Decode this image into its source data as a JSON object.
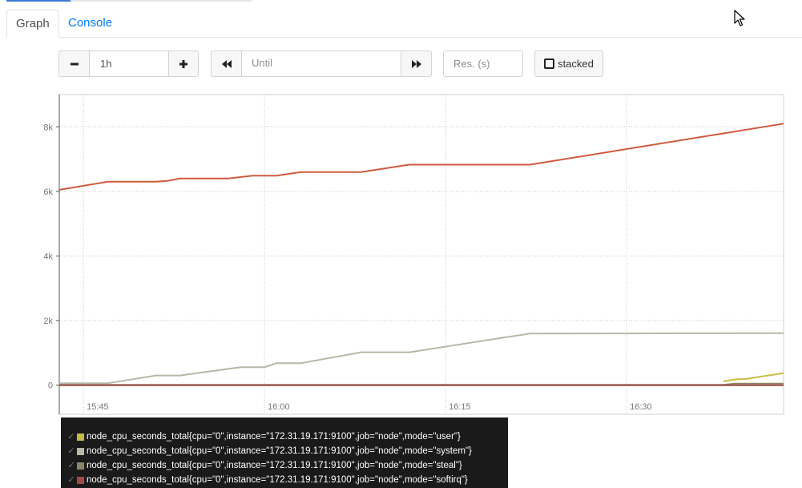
{
  "tabs": [
    {
      "label": "Graph",
      "active": true
    },
    {
      "label": "Console",
      "active": false
    }
  ],
  "controls": {
    "range_value": "1h",
    "until_placeholder": "Until",
    "res_placeholder": "Res. (s)",
    "stacked_label": "stacked"
  },
  "icons": {
    "minus": "minus-icon",
    "plus": "plus-icon",
    "back": "double-left-icon",
    "forward": "double-right-icon",
    "checkbox": "checkbox-icon",
    "cursor": "mouse-pointer-icon"
  },
  "chart_data": {
    "type": "line",
    "x_ticks": [
      "15:45",
      "16:00",
      "16:15",
      "16:30"
    ],
    "y_ticks": [
      "0",
      "2k",
      "4k",
      "6k",
      "8k"
    ],
    "xlim": [
      "15:43",
      "16:43"
    ],
    "ylim": [
      -900,
      9000
    ],
    "grid": true,
    "legend_placement": "bottom-left",
    "series": [
      {
        "name": "node_cpu_seconds_total{cpu=\"0\",instance=\"172.31.19.171:9100\",job=\"node\",mode=\"user\"}",
        "color": "#c8bc44",
        "points": [
          [
            "16:38",
            120
          ],
          [
            "16:39",
            180
          ],
          [
            "16:40",
            200
          ],
          [
            "16:41",
            260
          ],
          [
            "16:43",
            370
          ]
        ]
      },
      {
        "name": "node_cpu_seconds_total{cpu=\"0\",instance=\"172.31.19.171:9100\",job=\"node\",mode=\"system\"}",
        "color": "#b9b8a6",
        "points": [
          [
            "15:43",
            60
          ],
          [
            "15:47",
            60
          ],
          [
            "15:51",
            300
          ],
          [
            "15:53",
            300
          ],
          [
            "15:58",
            560
          ],
          [
            "16:00",
            560
          ],
          [
            "16:01",
            680
          ],
          [
            "16:03",
            680
          ],
          [
            "16:08",
            1020
          ],
          [
            "16:12",
            1020
          ],
          [
            "16:22",
            1600
          ],
          [
            "16:43",
            1610
          ]
        ]
      },
      {
        "name": "node_cpu_seconds_total{cpu=\"0\",instance=\"172.31.19.171:9100\",job=\"node\",mode=\"steal\"}",
        "color": "#8c8468",
        "points": [
          [
            "15:43",
            10
          ],
          [
            "16:38",
            10
          ],
          [
            "16:39",
            50
          ],
          [
            "16:43",
            50
          ]
        ]
      },
      {
        "name": "node_cpu_seconds_total{cpu=\"0\",instance=\"172.31.19.171:9100\",job=\"node\",mode=\"softirq\"}",
        "color": "#9e4b48",
        "points": [
          [
            "15:43",
            0
          ],
          [
            "16:43",
            0
          ]
        ]
      },
      {
        "name": "",
        "color": "#d05a3e",
        "points": [
          [
            "15:43",
            6050
          ],
          [
            "15:47",
            6300
          ],
          [
            "15:51",
            6300
          ],
          [
            "15:52",
            6330
          ],
          [
            "15:53",
            6400
          ],
          [
            "15:57",
            6400
          ],
          [
            "15:59",
            6490
          ],
          [
            "16:01",
            6490
          ],
          [
            "16:03",
            6600
          ],
          [
            "16:08",
            6600
          ],
          [
            "16:12",
            6830
          ],
          [
            "16:22",
            6830
          ],
          [
            "16:43",
            8100
          ]
        ]
      }
    ]
  }
}
